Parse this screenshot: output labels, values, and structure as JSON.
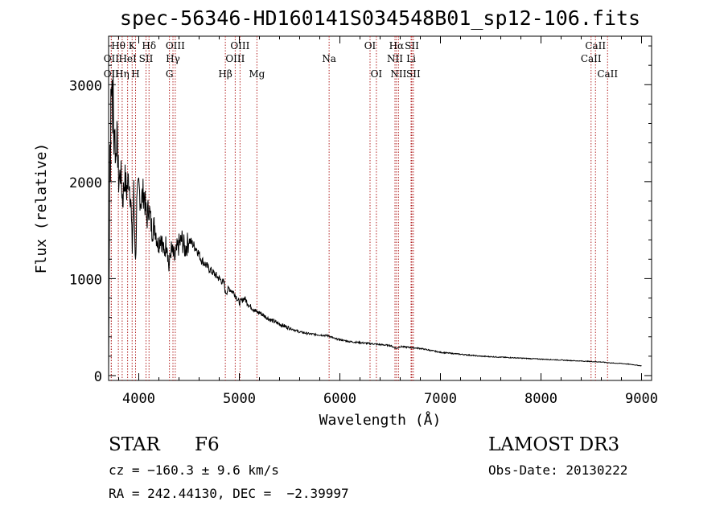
{
  "header": {
    "title": "spec-56346-HD160141S034548B01_sp12-106.fits"
  },
  "info": {
    "object_class": "STAR",
    "subclass": "F6",
    "survey": "LAMOST DR3",
    "redshift": "cz = −160.3 ± 9.6 km/s",
    "obs_date": "Obs-Date: 20130222",
    "coords": "RA = 242.44130, DEC =  −2.39997"
  },
  "colors": {
    "line_marker": "#b22222",
    "spectrum": "#000000"
  },
  "chart_data": {
    "type": "line",
    "title": "spec-56346-HD160141S034548B01_sp12-106.fits",
    "xlabel": "Wavelength (Å)",
    "ylabel": "Flux (relative)",
    "xlim": [
      3700,
      9100
    ],
    "ylim": [
      -50,
      3500
    ],
    "xticks": [
      4000,
      5000,
      6000,
      7000,
      8000,
      9000
    ],
    "yticks": [
      0,
      1000,
      2000,
      3000
    ],
    "series": [
      {
        "name": "flux",
        "x": [
          3700,
          3705,
          3712,
          3718,
          3722,
          3726,
          3730,
          3735,
          3740,
          3745,
          3750,
          3760,
          3770,
          3780,
          3790,
          3800,
          3820,
          3840,
          3860,
          3880,
          3900,
          3920,
          3935,
          3950,
          3968,
          3980,
          4000,
          4020,
          4050,
          4080,
          4100,
          4130,
          4160,
          4190,
          4220,
          4250,
          4280,
          4300,
          4320,
          4340,
          4360,
          4380,
          4400,
          4430,
          4460,
          4500,
          4540,
          4580,
          4620,
          4660,
          4700,
          4750,
          4800,
          4850,
          4861,
          4900,
          4950,
          5000,
          5050,
          5100,
          5150,
          5175,
          5200,
          5300,
          5400,
          5500,
          5600,
          5700,
          5800,
          5890,
          5950,
          6000,
          6100,
          6200,
          6300,
          6400,
          6500,
          6563,
          6600,
          6700,
          6800,
          6900,
          7000,
          7200,
          7400,
          7600,
          7800,
          8000,
          8200,
          8400,
          8500,
          8600,
          8700,
          8800,
          8900,
          9000
        ],
        "y": [
          0,
          900,
          2500,
          2000,
          3200,
          2700,
          2900,
          3100,
          2600,
          3000,
          2400,
          2600,
          2200,
          2500,
          2300,
          2000,
          2100,
          1800,
          2050,
          1900,
          2050,
          1850,
          1300,
          1900,
          1150,
          1750,
          1950,
          1800,
          1900,
          1600,
          1750,
          1500,
          1550,
          1350,
          1450,
          1250,
          1400,
          1100,
          1300,
          1250,
          1200,
          1300,
          1350,
          1400,
          1300,
          1400,
          1350,
          1300,
          1200,
          1150,
          1100,
          1050,
          1000,
          950,
          850,
          900,
          850,
          750,
          800,
          720,
          680,
          650,
          650,
          580,
          530,
          490,
          450,
          430,
          420,
          410,
          380,
          370,
          350,
          340,
          330,
          320,
          310,
          280,
          300,
          290,
          280,
          260,
          240,
          220,
          200,
          190,
          180,
          170,
          160,
          150,
          145,
          140,
          130,
          125,
          115,
          100
        ]
      }
    ],
    "lines": [
      {
        "name": "OII",
        "wave": 3727,
        "row": 2
      },
      {
        "name": "Hθ",
        "wave": 3797,
        "row": 0
      },
      {
        "name": "OII",
        "wave": 3727,
        "row": 1
      },
      {
        "name": "Hη",
        "wave": 3835,
        "row": 2
      },
      {
        "name": "HeI",
        "wave": 3889,
        "row": 1
      },
      {
        "name": "K",
        "wave": 3934,
        "row": 0
      },
      {
        "name": "H",
        "wave": 3968,
        "row": 2
      },
      {
        "name": "SII",
        "wave": 4072,
        "row": 1
      },
      {
        "name": "Hδ",
        "wave": 4102,
        "row": 0
      },
      {
        "name": "OIII",
        "wave": 4363,
        "row": 0
      },
      {
        "name": "Hγ",
        "wave": 4340,
        "row": 1
      },
      {
        "name": "G",
        "wave": 4305,
        "row": 2
      },
      {
        "name": "Hβ",
        "wave": 4861,
        "row": 2
      },
      {
        "name": "OIII",
        "wave": 5007,
        "row": 0
      },
      {
        "name": "OIII",
        "wave": 4959,
        "row": 1
      },
      {
        "name": "Mg",
        "wave": 5175,
        "row": 2
      },
      {
        "name": "Na",
        "wave": 5893,
        "row": 1
      },
      {
        "name": "OI",
        "wave": 6300,
        "row": 0
      },
      {
        "name": "OI",
        "wave": 6363,
        "row": 2
      },
      {
        "name": "Hα",
        "wave": 6563,
        "row": 0
      },
      {
        "name": "NII",
        "wave": 6548,
        "row": 1
      },
      {
        "name": "NII",
        "wave": 6583,
        "row": 2
      },
      {
        "name": "SII",
        "wave": 6716,
        "row": 0
      },
      {
        "name": "Li",
        "wave": 6708,
        "row": 1
      },
      {
        "name": "SII",
        "wave": 6731,
        "row": 2
      },
      {
        "name": "CaII",
        "wave": 8542,
        "row": 0
      },
      {
        "name": "CaII",
        "wave": 8498,
        "row": 1
      },
      {
        "name": "CaII",
        "wave": 8662,
        "row": 2
      }
    ]
  }
}
